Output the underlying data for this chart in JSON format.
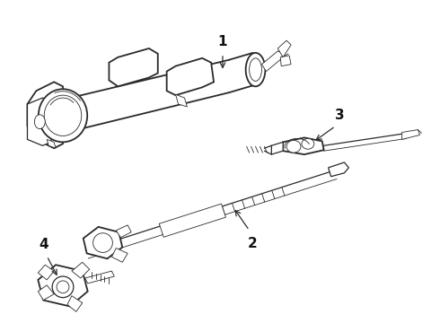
{
  "background_color": "#ffffff",
  "line_color": "#2a2a2a",
  "label_color": "#111111",
  "figsize": [
    4.9,
    3.6
  ],
  "dpi": 100,
  "label_fontsize": 11,
  "label_fontweight": "bold",
  "lw_main": 1.3,
  "lw_med": 0.9,
  "lw_thin": 0.6
}
